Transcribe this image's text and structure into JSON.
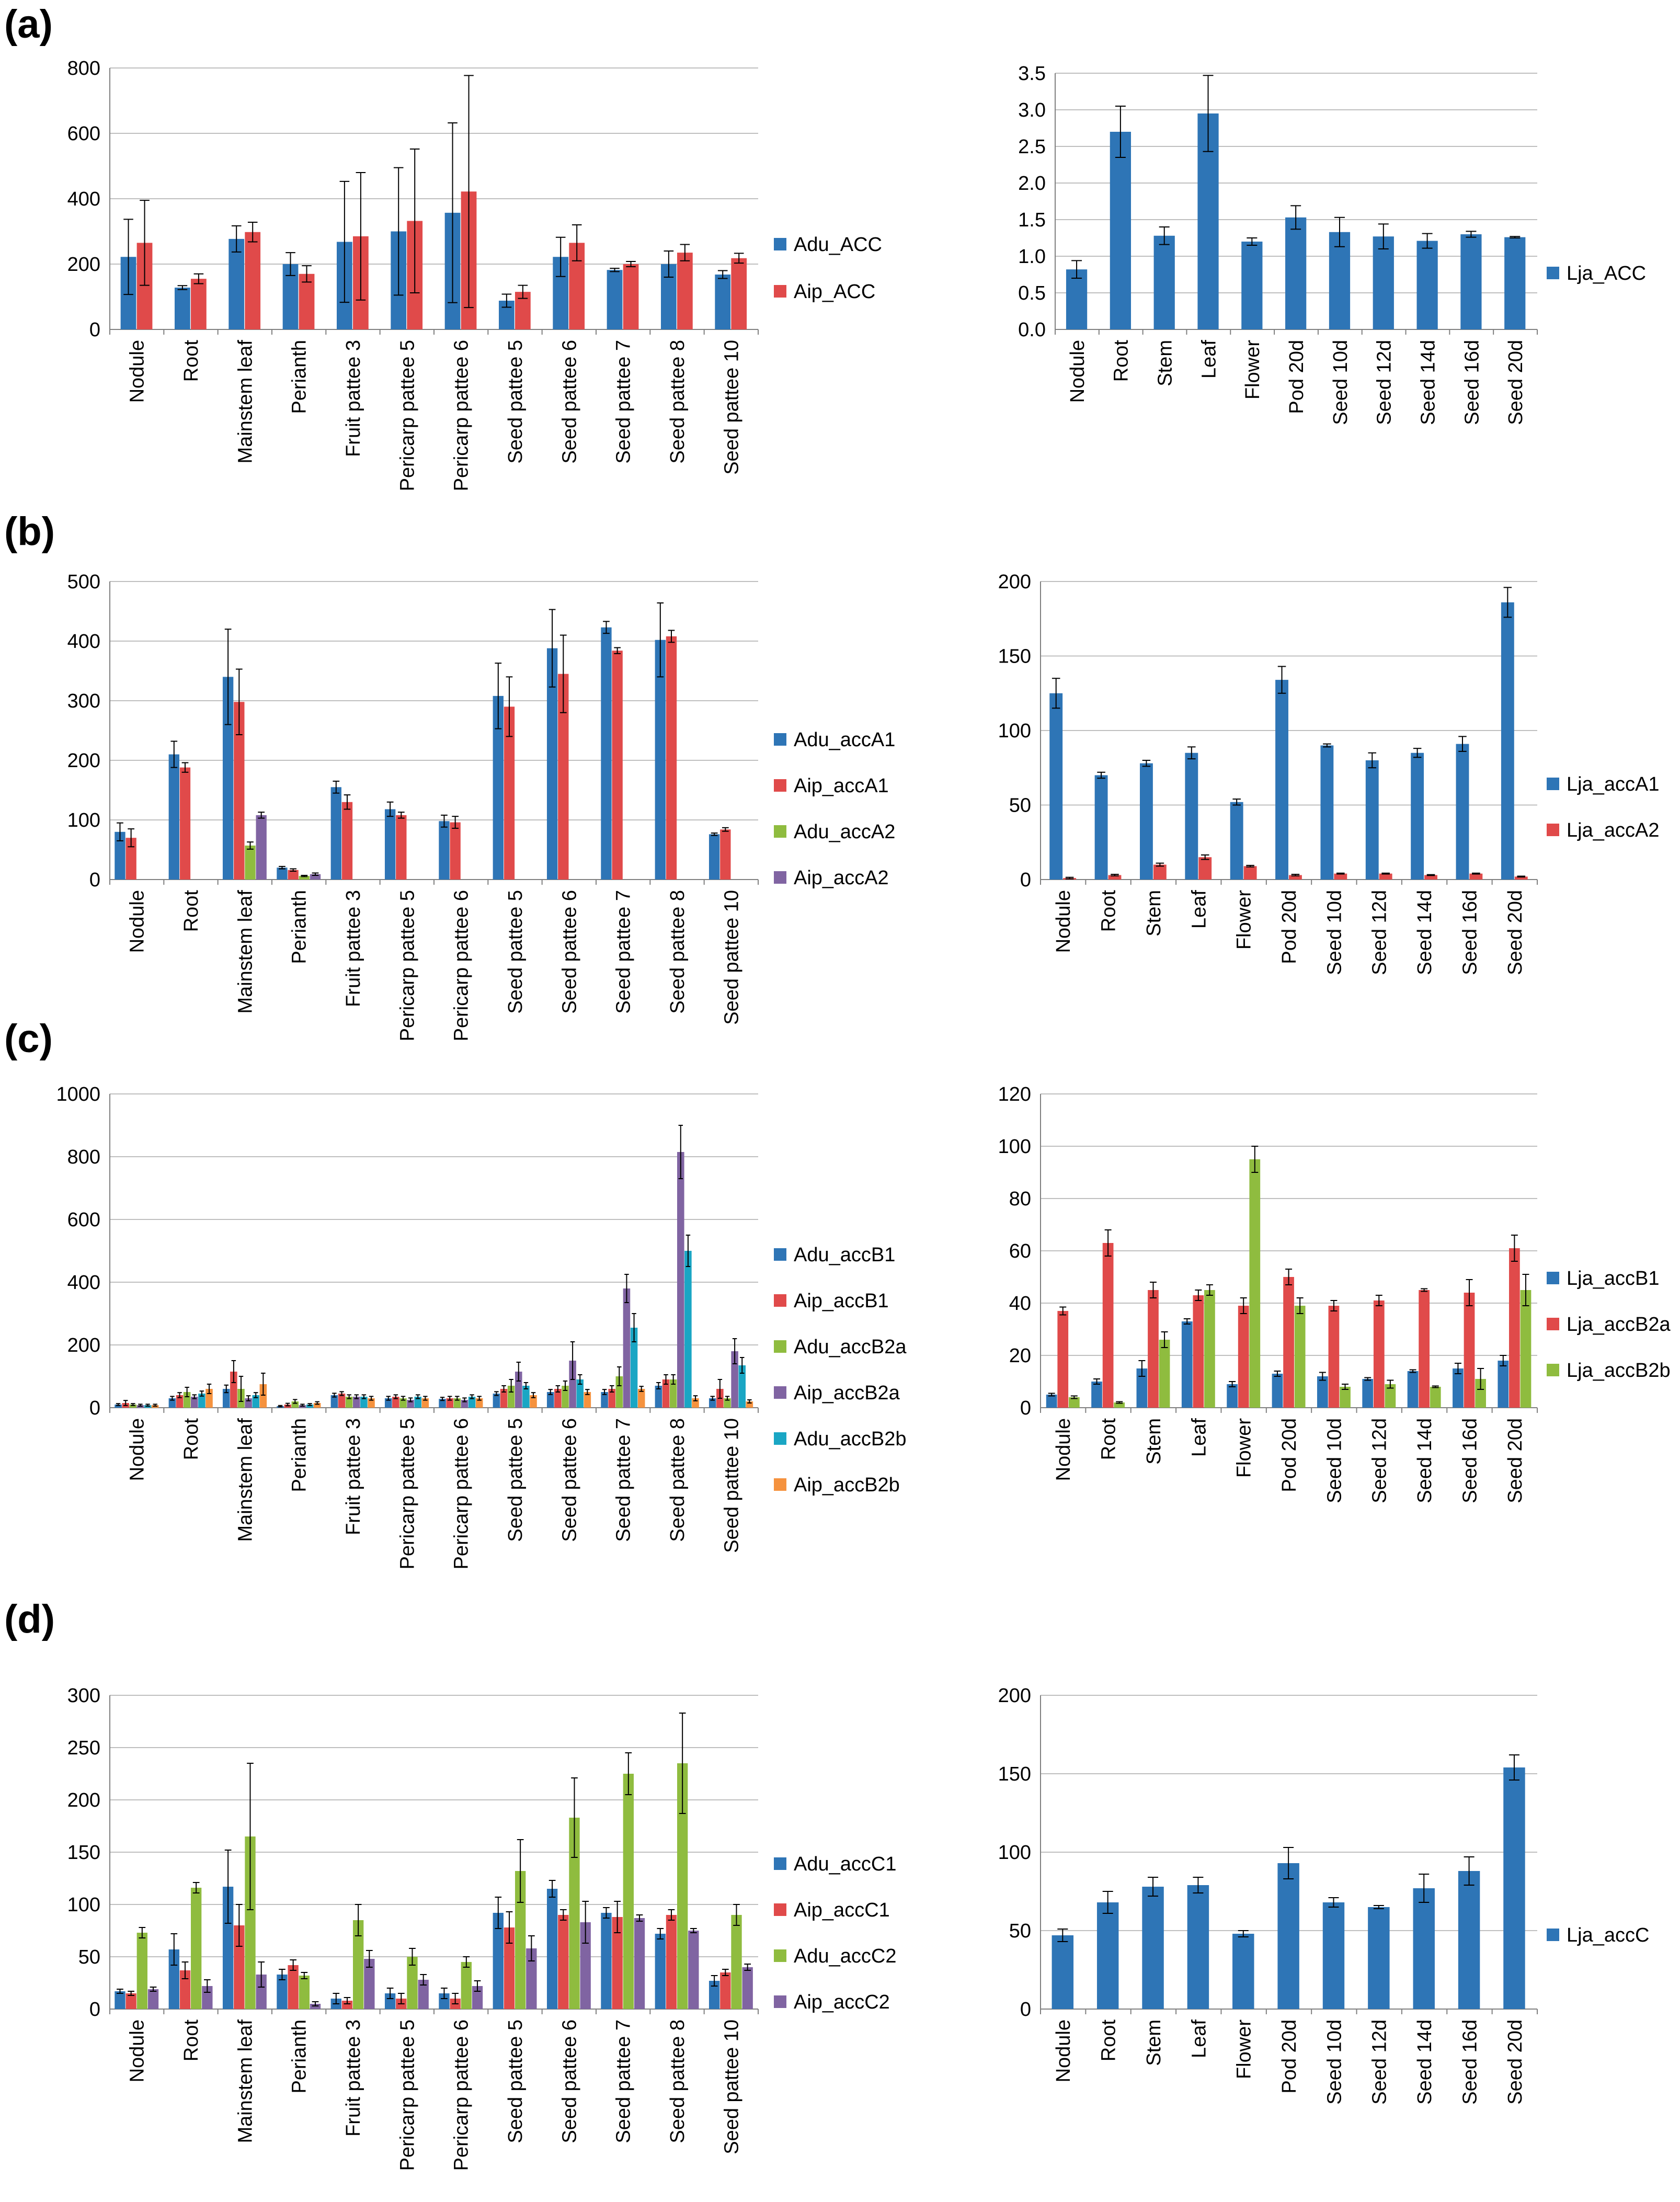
{
  "panels": [
    {
      "label": "(a)"
    },
    {
      "label": "(b)"
    },
    {
      "label": "(c)"
    },
    {
      "label": "(d)"
    }
  ],
  "colors": {
    "blue": "#2e75b6",
    "red": "#e04a4a",
    "green": "#8fbc3f",
    "purple": "#8064a2",
    "teal": "#1aa6c4",
    "orange": "#f5923e",
    "grid": "#bfbfbf",
    "axis": "#808080"
  },
  "chart_data": [
    {
      "id": "a-left",
      "type": "bar",
      "title": "",
      "xlabel": "",
      "ylabel": "",
      "ylim": [
        0,
        800
      ],
      "yticks": [
        0,
        200,
        400,
        600,
        800
      ],
      "categories": [
        "Nodule",
        "Root",
        "Mainstem leaf",
        "Perianth",
        "Fruit pattee 3",
        "Pericarp pattee 5",
        "Pericarp pattee 6",
        "Seed pattee 5",
        "Seed pattee 6",
        "Seed pattee 7",
        "Seed pattee 8",
        "Seed pattee 10"
      ],
      "series": [
        {
          "name": "Adu_ACC",
          "color": "blue",
          "values": [
            222,
            128,
            277,
            200,
            268,
            300,
            357,
            88,
            222,
            182,
            200,
            168
          ],
          "errors": [
            115,
            6,
            40,
            35,
            185,
            195,
            275,
            20,
            60,
            5,
            40,
            12
          ]
        },
        {
          "name": "Aip_ACC",
          "color": "red",
          "values": [
            265,
            155,
            298,
            170,
            285,
            332,
            422,
            115,
            265,
            200,
            235,
            218
          ],
          "errors": [
            130,
            15,
            30,
            25,
            195,
            220,
            355,
            20,
            55,
            8,
            25,
            15
          ]
        }
      ]
    },
    {
      "id": "a-right",
      "type": "bar",
      "title": "",
      "xlabel": "",
      "ylabel": "",
      "ylim": [
        0,
        3.5
      ],
      "yticks": [
        "0.0",
        "0.5",
        "1.0",
        "1.5",
        "2.0",
        "2.5",
        "3.0",
        "3.5"
      ],
      "categories": [
        "Nodule",
        "Root",
        "Stem",
        "Leaf",
        "Flower",
        "Pod 20d",
        "Seed 10d",
        "Seed 12d",
        "Seed 14d",
        "Seed 16d",
        "Seed 20d"
      ],
      "series": [
        {
          "name": "Lja_ACC",
          "color": "blue",
          "values": [
            0.82,
            2.7,
            1.28,
            2.95,
            1.2,
            1.53,
            1.33,
            1.27,
            1.21,
            1.3,
            1.26
          ],
          "errors": [
            0.12,
            0.35,
            0.12,
            0.52,
            0.05,
            0.16,
            0.2,
            0.17,
            0.1,
            0.04,
            0.01
          ]
        }
      ]
    },
    {
      "id": "b-left",
      "type": "bar",
      "title": "",
      "xlabel": "",
      "ylabel": "",
      "ylim": [
        0,
        500
      ],
      "yticks": [
        0,
        100,
        200,
        300,
        400,
        500
      ],
      "categories": [
        "Nodule",
        "Root",
        "Mainstem leaf",
        "Perianth",
        "Fruit pattee 3",
        "Pericarp pattee 5",
        "Pericarp pattee 6",
        "Seed pattee 5",
        "Seed pattee 6",
        "Seed pattee 7",
        "Seed pattee 8",
        "Seed pattee 10"
      ],
      "series": [
        {
          "name": "Adu_accA1",
          "color": "blue",
          "values": [
            80,
            210,
            340,
            20,
            155,
            118,
            98,
            308,
            388,
            423,
            402,
            76
          ],
          "errors": [
            15,
            22,
            80,
            2,
            10,
            12,
            10,
            55,
            65,
            10,
            62,
            2
          ]
        },
        {
          "name": "Aip_accA1",
          "color": "red",
          "values": [
            70,
            188,
            298,
            16,
            130,
            108,
            96,
            290,
            345,
            384,
            408,
            84
          ],
          "errors": [
            15,
            8,
            55,
            2,
            12,
            5,
            10,
            50,
            65,
            5,
            10,
            3
          ]
        },
        {
          "name": "Adu_accA2",
          "color": "green",
          "values": [
            0,
            0,
            57,
            6,
            0,
            0,
            0,
            0,
            0,
            0,
            0,
            0
          ],
          "errors": [
            0,
            0,
            6,
            1,
            0,
            0,
            0,
            0,
            0,
            0,
            0,
            0
          ]
        },
        {
          "name": "Aip_accA2",
          "color": "purple",
          "values": [
            0,
            0,
            108,
            9,
            0,
            0,
            0,
            0,
            0,
            0,
            0,
            0
          ],
          "errors": [
            0,
            0,
            5,
            2,
            0,
            0,
            0,
            0,
            0,
            0,
            0,
            0
          ]
        }
      ]
    },
    {
      "id": "b-right",
      "type": "bar",
      "title": "",
      "xlabel": "",
      "ylabel": "",
      "ylim": [
        0,
        200
      ],
      "yticks": [
        0,
        50,
        100,
        150,
        200
      ],
      "categories": [
        "Nodule",
        "Root",
        "Stem",
        "Leaf",
        "Flower",
        "Pod 20d",
        "Seed 10d",
        "Seed 12d",
        "Seed 14d",
        "Seed 16d",
        "Seed 20d"
      ],
      "series": [
        {
          "name": "Lja_accA1",
          "color": "blue",
          "values": [
            125,
            70,
            78,
            85,
            52,
            134,
            90,
            80,
            85,
            91,
            186
          ],
          "errors": [
            10,
            2,
            2,
            4,
            2,
            9,
            1,
            5,
            3,
            5,
            10
          ]
        },
        {
          "name": "Lja_accA2",
          "color": "red",
          "values": [
            1,
            3,
            10,
            15,
            9,
            3,
            4,
            4,
            3,
            4,
            2
          ],
          "errors": [
            0.5,
            0.5,
            1,
            1.5,
            0.5,
            0.5,
            0.3,
            0.3,
            0.3,
            0.3,
            0.3
          ]
        }
      ]
    },
    {
      "id": "c-left",
      "type": "bar",
      "title": "",
      "xlabel": "",
      "ylabel": "",
      "ylim": [
        0,
        1000
      ],
      "yticks": [
        0,
        200,
        400,
        600,
        800,
        1000
      ],
      "categories": [
        "Nodule",
        "Root",
        "Mainstem leaf",
        "Perianth",
        "Fruit pattee 3",
        "Pericarp pattee 5",
        "Pericarp pattee 6",
        "Seed pattee 5",
        "Seed pattee 6",
        "Seed pattee 7",
        "Seed pattee 8",
        "Seed pattee 10"
      ],
      "series": [
        {
          "name": "Adu_accB1",
          "color": "blue",
          "values": [
            10,
            30,
            60,
            5,
            40,
            30,
            28,
            45,
            50,
            50,
            70,
            30
          ],
          "errors": [
            3,
            6,
            12,
            2,
            6,
            6,
            5,
            6,
            8,
            8,
            10,
            6
          ]
        },
        {
          "name": "Aip_accB1",
          "color": "red",
          "values": [
            15,
            40,
            115,
            10,
            45,
            35,
            30,
            60,
            60,
            60,
            90,
            60
          ],
          "errors": [
            8,
            8,
            35,
            4,
            6,
            6,
            6,
            10,
            10,
            10,
            15,
            30
          ]
        },
        {
          "name": "Adu_accB2a",
          "color": "green",
          "values": [
            10,
            50,
            60,
            20,
            35,
            30,
            30,
            70,
            70,
            100,
            90,
            30
          ],
          "errors": [
            3,
            15,
            40,
            6,
            6,
            6,
            6,
            20,
            15,
            30,
            15,
            6
          ]
        },
        {
          "name": "Aip_accB2a",
          "color": "purple",
          "values": [
            8,
            35,
            30,
            8,
            35,
            25,
            25,
            115,
            150,
            380,
            815,
            180
          ],
          "errors": [
            3,
            6,
            8,
            3,
            6,
            6,
            6,
            30,
            60,
            45,
            85,
            40
          ]
        },
        {
          "name": "Adu_accB2b",
          "color": "teal",
          "values": [
            8,
            45,
            40,
            10,
            35,
            35,
            35,
            70,
            90,
            255,
            500,
            135
          ],
          "errors": [
            3,
            8,
            8,
            3,
            6,
            6,
            6,
            10,
            15,
            45,
            50,
            25
          ]
        },
        {
          "name": "Aip_accB2b",
          "color": "orange",
          "values": [
            8,
            60,
            75,
            15,
            30,
            30,
            30,
            40,
            50,
            60,
            30,
            20
          ],
          "errors": [
            3,
            15,
            35,
            4,
            6,
            6,
            6,
            8,
            8,
            8,
            8,
            5
          ]
        }
      ]
    },
    {
      "id": "c-right",
      "type": "bar",
      "title": "",
      "xlabel": "",
      "ylabel": "",
      "ylim": [
        0,
        120
      ],
      "yticks": [
        0,
        20,
        40,
        60,
        80,
        100,
        120
      ],
      "categories": [
        "Nodule",
        "Root",
        "Stem",
        "Leaf",
        "Flower",
        "Pod 20d",
        "Seed 10d",
        "Seed 12d",
        "Seed 14d",
        "Seed 16d",
        "Seed 20d"
      ],
      "series": [
        {
          "name": "Lja_accB1",
          "color": "blue",
          "values": [
            5,
            10,
            15,
            33,
            9,
            13,
            12,
            11,
            14,
            15,
            18
          ],
          "errors": [
            0.5,
            1,
            3,
            1,
            1,
            1,
            1.5,
            0.5,
            0.5,
            2,
            2
          ]
        },
        {
          "name": "Lja_accB2a",
          "color": "red",
          "values": [
            37,
            63,
            45,
            43,
            39,
            50,
            39,
            41,
            45,
            44,
            61
          ],
          "errors": [
            1.5,
            5,
            3,
            2,
            3,
            3,
            2,
            2,
            0.5,
            5,
            5
          ]
        },
        {
          "name": "Lja_accB2b",
          "color": "green",
          "values": [
            4,
            2,
            26,
            45,
            95,
            39,
            8,
            9,
            8,
            11,
            45
          ],
          "errors": [
            0.5,
            0.3,
            3,
            2,
            5,
            3,
            1,
            1.5,
            0.3,
            4,
            6
          ]
        }
      ]
    },
    {
      "id": "d-left",
      "type": "bar",
      "title": "",
      "xlabel": "",
      "ylabel": "",
      "ylim": [
        0,
        300
      ],
      "yticks": [
        0,
        50,
        100,
        150,
        200,
        250,
        300
      ],
      "categories": [
        "Nodule",
        "Root",
        "Mainstem leaf",
        "Perianth",
        "Fruit pattee 3",
        "Pericarp pattee 5",
        "Pericarp pattee 6",
        "Seed pattee 5",
        "Seed pattee 6",
        "Seed pattee 7",
        "Seed pattee 8",
        "Seed pattee 10"
      ],
      "series": [
        {
          "name": "Adu_accC1",
          "color": "blue",
          "values": [
            17,
            57,
            117,
            33,
            10,
            15,
            15,
            92,
            115,
            92,
            72,
            27
          ],
          "errors": [
            2,
            15,
            35,
            5,
            5,
            5,
            5,
            15,
            8,
            5,
            5,
            5
          ]
        },
        {
          "name": "Aip_accC1",
          "color": "red",
          "values": [
            15,
            37,
            80,
            42,
            8,
            10,
            10,
            78,
            90,
            88,
            90,
            35
          ],
          "errors": [
            2,
            8,
            20,
            5,
            3,
            5,
            5,
            15,
            5,
            15,
            5,
            3
          ]
        },
        {
          "name": "Adu_accC2",
          "color": "green",
          "values": [
            73,
            116,
            165,
            32,
            85,
            50,
            45,
            132,
            183,
            225,
            235,
            90
          ],
          "errors": [
            5,
            5,
            70,
            3,
            15,
            8,
            5,
            30,
            38,
            20,
            48,
            10
          ]
        },
        {
          "name": "Aip_accC2",
          "color": "purple",
          "values": [
            19,
            22,
            33,
            5,
            48,
            28,
            22,
            58,
            83,
            87,
            75,
            40
          ],
          "errors": [
            2,
            6,
            12,
            2,
            8,
            5,
            5,
            12,
            20,
            3,
            2,
            3
          ]
        }
      ]
    },
    {
      "id": "d-right",
      "type": "bar",
      "title": "",
      "xlabel": "",
      "ylabel": "",
      "ylim": [
        0,
        200
      ],
      "yticks": [
        0,
        50,
        100,
        150,
        200
      ],
      "categories": [
        "Nodule",
        "Root",
        "Stem",
        "Leaf",
        "Flower",
        "Pod 20d",
        "Seed 10d",
        "Seed 12d",
        "Seed 14d",
        "Seed 16d",
        "Seed 20d"
      ],
      "series": [
        {
          "name": "Lja_accC",
          "color": "blue",
          "values": [
            47,
            68,
            78,
            79,
            48,
            93,
            68,
            65,
            77,
            88,
            154
          ],
          "errors": [
            4,
            7,
            6,
            5,
            2,
            10,
            3,
            1,
            9,
            9,
            8
          ]
        }
      ]
    }
  ]
}
